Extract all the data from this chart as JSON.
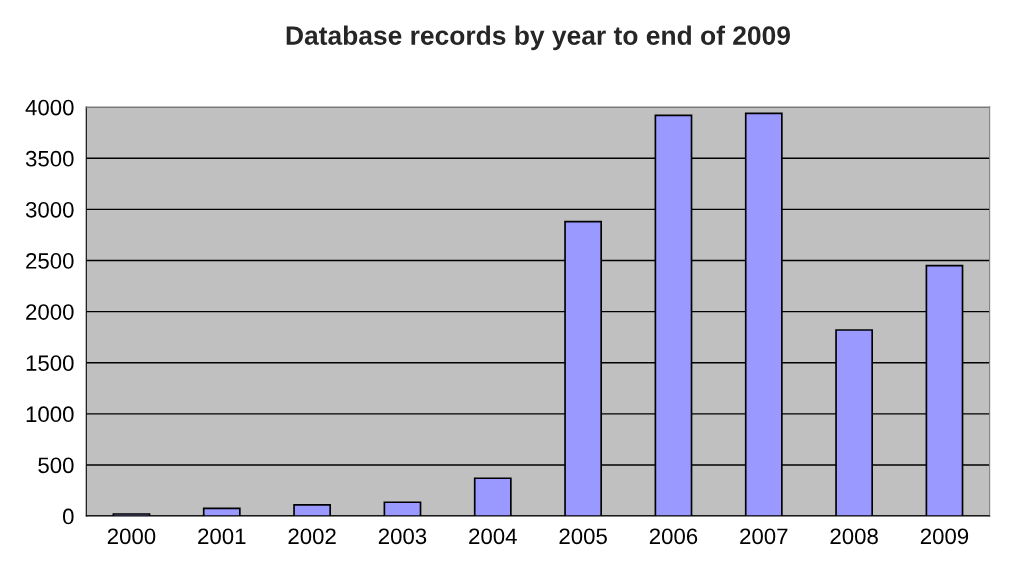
{
  "chart_data": {
    "type": "bar",
    "title": "Database records by year to end of 2009",
    "categories": [
      "2000",
      "2001",
      "2002",
      "2003",
      "2004",
      "2005",
      "2006",
      "2007",
      "2008",
      "2009"
    ],
    "values": [
      20,
      75,
      110,
      135,
      370,
      2880,
      3920,
      3940,
      1820,
      2450
    ],
    "color": "#9999ff",
    "ylim": [
      0,
      4000
    ],
    "yticks": [
      0,
      500,
      1000,
      1500,
      2000,
      2500,
      3000,
      3500,
      4000
    ],
    "grid": "y",
    "legend": false
  }
}
